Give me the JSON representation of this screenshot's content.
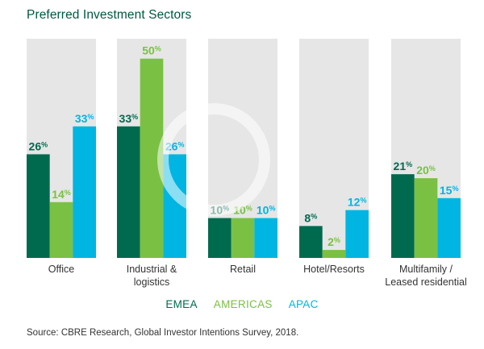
{
  "chart_data": {
    "type": "bar",
    "title": "Preferred Investment Sectors",
    "categories": [
      [
        "Office"
      ],
      [
        "Industrial &",
        "logistics"
      ],
      [
        "Retail"
      ],
      [
        "Hotel/Resorts"
      ],
      [
        "Multifamily /",
        "Leased residential"
      ]
    ],
    "series": [
      {
        "name": "EMEA",
        "values": [
          26,
          33,
          10,
          8,
          21
        ],
        "color": "#006a4e"
      },
      {
        "name": "AMERICAS",
        "values": [
          14,
          50,
          10,
          2,
          20
        ],
        "color": "#7ac143"
      },
      {
        "name": "APAC",
        "values": [
          33,
          26,
          10,
          12,
          15
        ],
        "color": "#00b5e2"
      }
    ],
    "value_suffix": "%",
    "ylim": [
      0,
      55
    ],
    "background_color": "#e6e6e6",
    "legend_position": "bottom-center"
  },
  "source": "Source: CBRE Research, Global Investor Intentions Survey, 2018."
}
